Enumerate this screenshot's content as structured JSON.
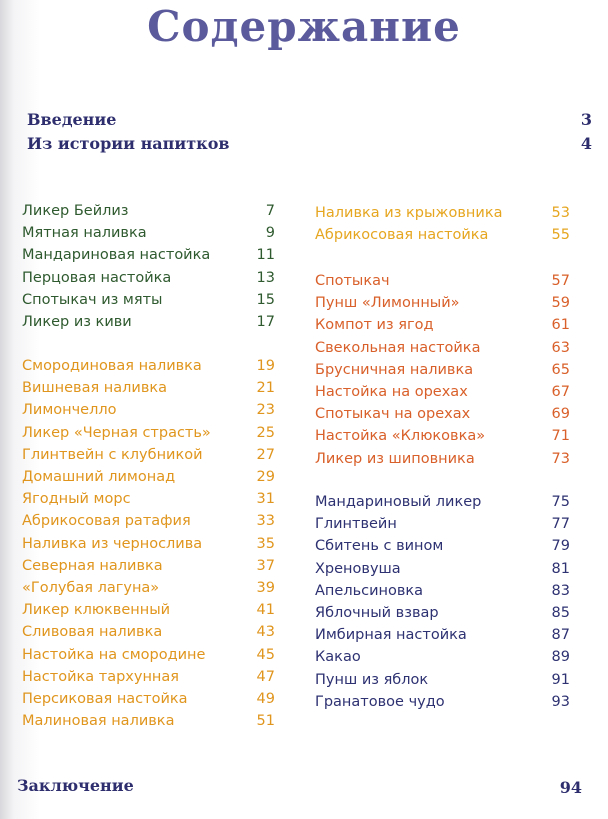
{
  "title": "Содержание",
  "intro": [
    {
      "label": "Введение",
      "page": 3
    },
    {
      "label": "Из истории напитков",
      "page": 4
    }
  ],
  "columns": [
    {
      "groups": [
        {
          "color": "#2f5a2f",
          "items": [
            {
              "label": "Ликер Бейлиз",
              "page": 7
            },
            {
              "label": "Мятная наливка",
              "page": 9
            },
            {
              "label": "Мандариновая настойка",
              "page": 11
            },
            {
              "label": "Перцовая настойка",
              "page": 13
            },
            {
              "label": "Спотыкач из мяты",
              "page": 15
            },
            {
              "label": "Ликер из киви",
              "page": 17
            }
          ]
        },
        {
          "color": "#e0961e",
          "items": [
            {
              "label": "Смородиновая наливка",
              "page": 19
            },
            {
              "label": "Вишневая наливка",
              "page": 21
            },
            {
              "label": "Лимончелло",
              "page": 23
            },
            {
              "label": "Ликер «Черная страсть»",
              "page": 25
            },
            {
              "label": "Глинтвейн с клубникой",
              "page": 27
            },
            {
              "label": "Домашний лимонад",
              "page": 29
            },
            {
              "label": "Ягодный морс",
              "page": 31
            },
            {
              "label": "Абрикосовая ратафия",
              "page": 33
            },
            {
              "label": "Наливка из чернослива",
              "page": 35
            },
            {
              "label": "Северная наливка",
              "page": 37
            },
            {
              "label": "«Голубая лагуна»",
              "page": 39
            },
            {
              "label": "Ликер клюквенный",
              "page": 41
            },
            {
              "label": "Сливовая наливка",
              "page": 43
            },
            {
              "label": "Настойка на смородине",
              "page": 45
            },
            {
              "label": "Настойка тархунная",
              "page": 47
            },
            {
              "label": "Персиковая настойка",
              "page": 49
            },
            {
              "label": "Малиновая наливка",
              "page": 51
            }
          ]
        }
      ]
    },
    {
      "groups": [
        {
          "color": "#e6a620",
          "items": [
            {
              "label": "Наливка из крыжовника",
              "page": 53
            },
            {
              "label": "Абрикосовая настойка",
              "page": 55
            }
          ]
        },
        {
          "color": "#d9602a",
          "items": [
            {
              "label": "Спотыкач",
              "page": 57
            },
            {
              "label": "Пунш «Лимонный»",
              "page": 59
            },
            {
              "label": "Компот из ягод",
              "page": 61
            },
            {
              "label": "Свекольная настойка",
              "page": 63
            },
            {
              "label": "Брусничная наливка",
              "page": 65
            },
            {
              "label": "Настойка на орехах",
              "page": 67
            },
            {
              "label": "Спотыкач на орехах",
              "page": 69
            },
            {
              "label": "Настойка «Клюковка»",
              "page": 71
            },
            {
              "label": "Ликер из шиповника",
              "page": 73
            }
          ]
        },
        {
          "color": "#2e3272",
          "items": [
            {
              "label": "Мандариновый ликер",
              "page": 75
            },
            {
              "label": "Глинтвейн",
              "page": 77
            },
            {
              "label": "Сбитень с вином",
              "page": 79
            },
            {
              "label": "Хреновуша",
              "page": 81
            },
            {
              "label": "Апельсиновка",
              "page": 83
            },
            {
              "label": "Яблочный взвар",
              "page": 85
            },
            {
              "label": "Имбирная настойка",
              "page": 87
            },
            {
              "label": "Какао",
              "page": 89
            },
            {
              "label": "Пунш из яблок",
              "page": 91
            },
            {
              "label": "Гранатовое чудо",
              "page": 93
            }
          ]
        }
      ]
    }
  ],
  "conclusion": {
    "label": "Заключение",
    "page": 94
  }
}
